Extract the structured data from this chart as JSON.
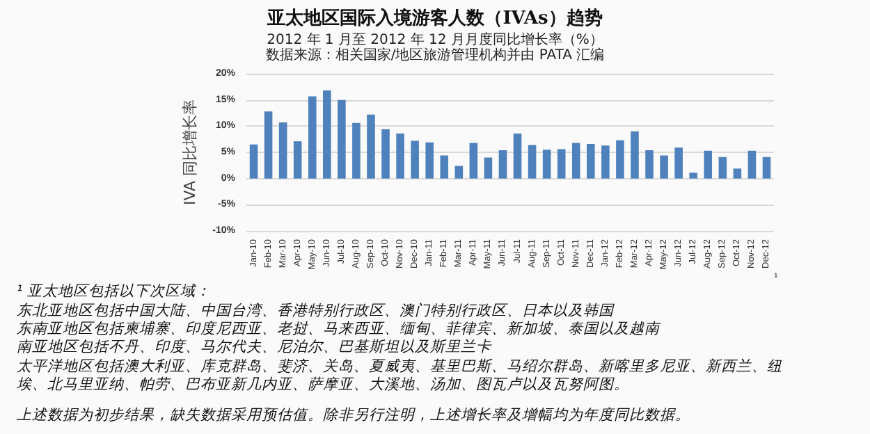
{
  "chart_data": {
    "type": "bar",
    "title": "亚太地区国际入境游客人数（IVAs）趋势",
    "subtitle": "2012 年 1 月至 2012 年 12 月月度同比增长率（%）",
    "ylabel": "IVA 同比增长率",
    "categories": [
      "Jan-10",
      "Feb-10",
      "Mar-10",
      "Apr-10",
      "May-10",
      "Jun-10",
      "Jul-10",
      "Aug-10",
      "Sep-10",
      "Oct-10",
      "Nov-10",
      "Dec-10",
      "Jan-11",
      "Feb-11",
      "Mar-11",
      "Apr-11",
      "May-11",
      "Jun-11",
      "Jul-11",
      "Aug-11",
      "Sep-11",
      "Oct-11",
      "Nov-11",
      "Dec-11",
      "Jan-12",
      "Feb-12",
      "Mar-12",
      "Apr-12",
      "May-12",
      "Jun-12",
      "Jul-12",
      "Aug-12",
      "Sep-12",
      "Oct-12",
      "Nov-12",
      "Dec-12"
    ],
    "values": [
      6.5,
      12.8,
      10.7,
      7.1,
      15.7,
      16.8,
      15.0,
      10.6,
      12.2,
      9.4,
      8.6,
      7.2,
      6.9,
      4.4,
      2.4,
      6.8,
      4.0,
      5.4,
      8.6,
      6.4,
      5.5,
      5.6,
      6.8,
      6.6,
      6.3,
      7.3,
      9.0,
      5.4,
      4.4,
      5.9,
      1.1,
      5.3,
      4.1,
      1.9,
      5.3,
      4.1
    ],
    "color": "#4f81bd",
    "ylim": [
      -10,
      20
    ],
    "yticks": [
      {
        "value": -10,
        "label": "-10%"
      },
      {
        "value": -5,
        "label": "-5%"
      },
      {
        "value": 0,
        "label": "0%"
      },
      {
        "value": 5,
        "label": "5%"
      },
      {
        "value": 10,
        "label": "10%"
      },
      {
        "value": 15,
        "label": "15%"
      },
      {
        "value": 20,
        "label": "20%"
      }
    ],
    "grid": "y",
    "annotations": [
      "数据来源：相关国家/地区旅游管理机构并由 PATA 汇编",
      "¹",
      "¹ 亚太地区包括以下次区域：",
      "东北亚地区包括中国大陆、中国台湾、香港特别行政区、澳门特别行政区、日本以及韩国",
      "东南亚地区包括柬埔寨、印度尼西亚、老挝、马来西亚、缅甸、菲律宾、新加坡、泰国以及越南",
      "南亚地区包括不丹、印度、马尔代夫、尼泊尔、巴基斯坦以及斯里兰卡",
      "太平洋地区包括澳大利亚、库克群岛、斐济、关岛、夏威夷、基里巴斯、马绍尔群岛、新喀里多尼亚、新西兰、纽",
      "埃、北马里亚纳、帕劳、巴布亚新几内亚、萨摩亚、大溪地、汤加、图瓦卢以及瓦努阿图。",
      "上述数据为初步结果，缺失数据采用预估值。除非另行注明，上述增长率及增幅均为年度同比数据。"
    ]
  }
}
